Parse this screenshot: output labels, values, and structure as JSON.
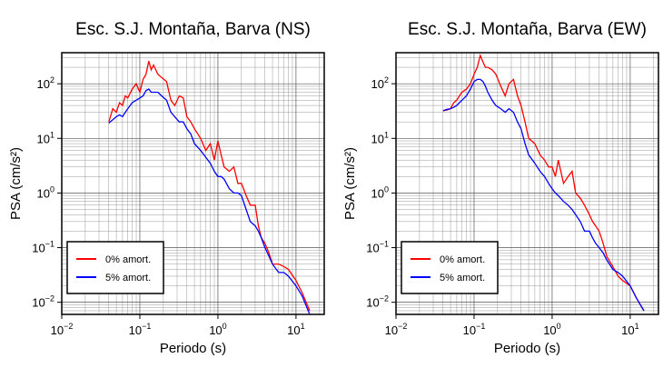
{
  "chart_data": [
    {
      "type": "line",
      "title": "Esc. S.J. Montaña, Barva (NS)",
      "x_label": "Periodo (s)",
      "y_label": "PSA (cm/s²)",
      "log_x": true,
      "log_y": true,
      "grid": true,
      "minor_grid": true,
      "legend": "bottom-left",
      "xlim": [
        0.01,
        23
      ],
      "ylim": [
        0.006,
        370
      ],
      "xticks": [
        {
          "value": 0.01,
          "label": "10",
          "exponent": "−2"
        },
        {
          "value": 0.1,
          "label": "10",
          "exponent": "−1"
        },
        {
          "value": 1,
          "label": "10",
          "exponent": "0"
        },
        {
          "value": 10,
          "label": "10",
          "exponent": "1"
        }
      ],
      "yticks": [
        {
          "value": 0.01,
          "label": "10",
          "exponent": "−2"
        },
        {
          "value": 0.1,
          "label": "10",
          "exponent": "−1"
        },
        {
          "value": 1,
          "label": "10",
          "exponent": "0"
        },
        {
          "value": 10,
          "label": "10",
          "exponent": "1"
        },
        {
          "value": 100,
          "label": "10",
          "exponent": "2"
        }
      ],
      "x": [
        0.04,
        0.045,
        0.05,
        0.055,
        0.06,
        0.065,
        0.07,
        0.08,
        0.09,
        0.1,
        0.11,
        0.12,
        0.13,
        0.14,
        0.15,
        0.17,
        0.19,
        0.22,
        0.25,
        0.28,
        0.32,
        0.36,
        0.4,
        0.45,
        0.5,
        0.6,
        0.7,
        0.8,
        0.9,
        1.0,
        1.1,
        1.2,
        1.4,
        1.6,
        1.8,
        2.0,
        2.3,
        2.6,
        3.0,
        3.3,
        3.6,
        4.0,
        4.5,
        5,
        6,
        7,
        8,
        10,
        12,
        15
      ],
      "series": [
        {
          "name": "0% amort.",
          "color": "#ff0000",
          "values": [
            20,
            35,
            30,
            45,
            40,
            60,
            55,
            80,
            100,
            70,
            120,
            150,
            260,
            180,
            220,
            150,
            130,
            110,
            50,
            40,
            60,
            55,
            25,
            20,
            15,
            10,
            6,
            8,
            4,
            9,
            5,
            3,
            2.5,
            3,
            1.5,
            1.5,
            0.9,
            0.6,
            0.6,
            0.25,
            0.15,
            0.12,
            0.08,
            0.05,
            0.05,
            0.045,
            0.04,
            0.025,
            0.015,
            0.007
          ]
        },
        {
          "name": "5% amort.",
          "color": "#0000ff",
          "values": [
            19,
            22,
            25,
            27,
            25,
            30,
            35,
            45,
            50,
            55,
            60,
            75,
            80,
            70,
            70,
            70,
            60,
            50,
            30,
            25,
            20,
            20,
            15,
            12,
            8,
            6,
            4.5,
            3.5,
            2.5,
            2,
            2,
            1.8,
            1.2,
            1,
            1,
            0.9,
            0.5,
            0.3,
            0.25,
            0.2,
            0.15,
            0.1,
            0.07,
            0.05,
            0.035,
            0.035,
            0.03,
            0.02,
            0.013,
            0.006
          ]
        }
      ]
    },
    {
      "type": "line",
      "title": "Esc. S.J. Montaña, Barva (EW)",
      "x_label": "Periodo (s)",
      "y_label": "PSA (cm/s²)",
      "log_x": true,
      "log_y": true,
      "grid": true,
      "minor_grid": true,
      "legend": "bottom-left",
      "xlim": [
        0.01,
        23
      ],
      "ylim": [
        0.006,
        370
      ],
      "xticks": [
        {
          "value": 0.01,
          "label": "10",
          "exponent": "−2"
        },
        {
          "value": 0.1,
          "label": "10",
          "exponent": "−1"
        },
        {
          "value": 1,
          "label": "10",
          "exponent": "0"
        },
        {
          "value": 10,
          "label": "10",
          "exponent": "1"
        }
      ],
      "yticks": [
        {
          "value": 0.01,
          "label": "10",
          "exponent": "−2"
        },
        {
          "value": 0.1,
          "label": "10",
          "exponent": "−1"
        },
        {
          "value": 1,
          "label": "10",
          "exponent": "0"
        },
        {
          "value": 10,
          "label": "10",
          "exponent": "1"
        },
        {
          "value": 100,
          "label": "10",
          "exponent": "2"
        }
      ],
      "x": [
        0.04,
        0.045,
        0.05,
        0.055,
        0.06,
        0.065,
        0.07,
        0.08,
        0.09,
        0.1,
        0.11,
        0.12,
        0.13,
        0.14,
        0.15,
        0.17,
        0.19,
        0.22,
        0.25,
        0.28,
        0.32,
        0.36,
        0.4,
        0.45,
        0.5,
        0.6,
        0.7,
        0.8,
        0.9,
        1.0,
        1.1,
        1.2,
        1.4,
        1.6,
        1.8,
        2.0,
        2.3,
        2.6,
        3.0,
        3.3,
        3.6,
        4.0,
        4.5,
        5,
        6,
        7,
        8,
        10,
        12,
        15
      ],
      "series": [
        {
          "name": "0% amort.",
          "color": "#ff0000",
          "values": [
            32,
            33,
            35,
            45,
            50,
            60,
            70,
            80,
            100,
            150,
            200,
            330,
            250,
            200,
            200,
            180,
            150,
            90,
            60,
            100,
            120,
            60,
            40,
            20,
            10,
            8,
            5,
            4,
            3,
            3,
            2,
            4,
            1.5,
            2,
            2.5,
            1,
            0.8,
            0.6,
            0.4,
            0.3,
            0.25,
            0.2,
            0.12,
            0.07,
            0.045,
            0.03,
            0.025,
            0.02,
            0.012,
            0.007
          ]
        },
        {
          "name": "5% amort.",
          "color": "#0000ff",
          "values": [
            32,
            34,
            35,
            37,
            40,
            45,
            50,
            60,
            80,
            110,
            120,
            120,
            110,
            90,
            70,
            50,
            40,
            35,
            30,
            35,
            30,
            20,
            15,
            8,
            5,
            3.5,
            2.5,
            2,
            1.5,
            1.2,
            1,
            0.9,
            0.7,
            0.6,
            0.5,
            0.4,
            0.3,
            0.2,
            0.2,
            0.15,
            0.12,
            0.1,
            0.08,
            0.06,
            0.04,
            0.035,
            0.03,
            0.02,
            0.012,
            0.007
          ]
        }
      ]
    }
  ]
}
